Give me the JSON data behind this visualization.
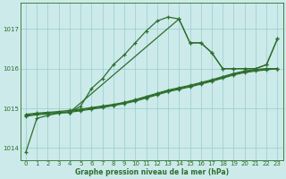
{
  "xlabel": "Graphe pression niveau de la mer (hPa)",
  "bg_color": "#cceaea",
  "grid_color": "#99cccc",
  "line_color": "#2d6e2d",
  "xlim": [
    -0.5,
    23.5
  ],
  "ylim": [
    1013.7,
    1017.65
  ],
  "yticks": [
    1014,
    1015,
    1016,
    1017
  ],
  "xticks": [
    0,
    1,
    2,
    3,
    4,
    5,
    6,
    7,
    8,
    9,
    10,
    11,
    12,
    13,
    14,
    15,
    16,
    17,
    18,
    19,
    20,
    21,
    22,
    23
  ],
  "main_line_x": [
    0,
    1,
    2,
    3,
    4,
    5,
    6,
    7,
    8,
    9,
    10,
    11,
    12,
    13,
    14,
    15,
    16,
    17,
    18,
    19,
    20,
    21,
    22,
    23
  ],
  "main_line_y": [
    1013.9,
    1014.75,
    1014.82,
    1014.88,
    1014.9,
    1015.05,
    1015.5,
    1015.75,
    1016.1,
    1016.35,
    1016.65,
    1016.95,
    1017.2,
    1017.3,
    1017.25,
    1016.65,
    1016.65,
    1016.4,
    1016.0,
    1016.0,
    1016.0,
    1016.0,
    1016.1,
    1016.75
  ],
  "straight_line1_x": [
    0,
    1,
    2,
    3,
    4,
    5,
    6,
    7,
    8,
    9,
    10,
    11,
    12,
    13,
    14,
    15,
    16,
    17,
    18,
    19,
    20,
    21,
    22,
    23
  ],
  "straight_line1_y": [
    1014.85,
    1014.88,
    1014.9,
    1014.92,
    1014.95,
    1014.98,
    1015.02,
    1015.06,
    1015.1,
    1015.15,
    1015.22,
    1015.3,
    1015.38,
    1015.46,
    1015.52,
    1015.58,
    1015.65,
    1015.72,
    1015.8,
    1015.88,
    1015.94,
    1015.98,
    1016.0,
    1016.0
  ],
  "straight_line2_x": [
    0,
    1,
    2,
    3,
    4,
    5,
    6,
    7,
    8,
    9,
    10,
    11,
    12,
    13,
    14,
    15,
    16,
    17,
    18,
    19,
    20,
    21,
    22,
    23
  ],
  "straight_line2_y": [
    1014.82,
    1014.86,
    1014.88,
    1014.9,
    1014.92,
    1014.96,
    1015.0,
    1015.04,
    1015.08,
    1015.14,
    1015.2,
    1015.28,
    1015.36,
    1015.44,
    1015.5,
    1015.56,
    1015.63,
    1015.7,
    1015.78,
    1015.86,
    1015.92,
    1015.96,
    1015.99,
    1016.0
  ],
  "straight_line3_x": [
    0,
    1,
    2,
    3,
    4,
    5,
    6,
    7,
    8,
    9,
    10,
    11,
    12,
    13,
    14,
    15,
    16,
    17,
    18,
    19,
    20,
    21,
    22,
    23
  ],
  "straight_line3_y": [
    1014.8,
    1014.84,
    1014.86,
    1014.88,
    1014.9,
    1014.94,
    1014.98,
    1015.02,
    1015.07,
    1015.12,
    1015.18,
    1015.26,
    1015.34,
    1015.42,
    1015.48,
    1015.54,
    1015.61,
    1015.68,
    1015.76,
    1015.84,
    1015.9,
    1015.94,
    1015.97,
    1016.0
  ],
  "extra_line_x": [
    4,
    14,
    15,
    16,
    17,
    18,
    19,
    20,
    21,
    22,
    23
  ],
  "extra_line_y": [
    1014.9,
    1017.25,
    1016.65,
    1016.65,
    1016.4,
    1016.0,
    1016.0,
    1016.0,
    1016.0,
    1016.1,
    1016.75
  ]
}
